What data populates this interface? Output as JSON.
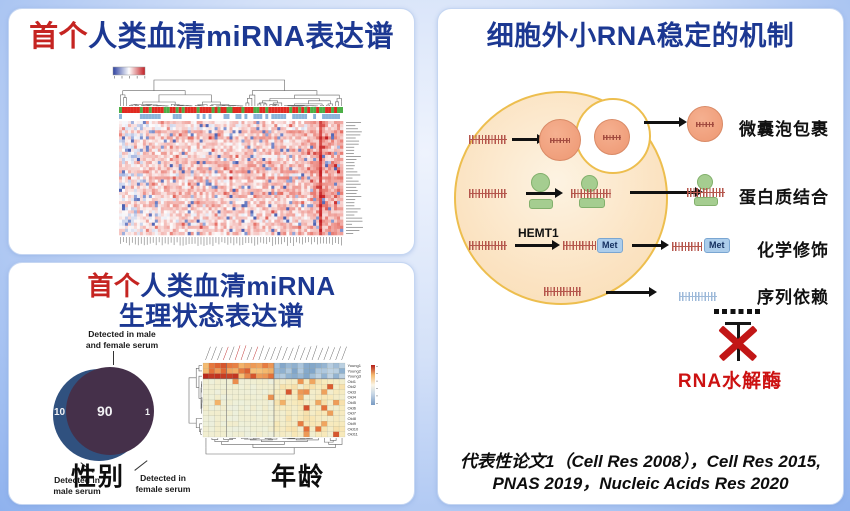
{
  "serum_panel": {
    "title_prefix": "首个",
    "title_rest": "人类血清miRNA表达谱",
    "heatmap": {
      "rows": 37,
      "cols": 75,
      "seed": 13,
      "color_low": "#2d41a0",
      "color_mid": "#ffffff",
      "color_high": "#c31e23",
      "annotation1_colors": [
        "#e02a20",
        "#4caf46"
      ],
      "annotation2_colors": [
        "#8ab4da",
        "#ffffff"
      ]
    }
  },
  "physio_panel": {
    "title_prefix": "首个",
    "title_rest": "人类血清miRNA",
    "title_line2": "生理状态表达谱",
    "venn": {
      "label_top_line1": "Detected in male",
      "label_top_line2": "and female serum",
      "left_value": "10",
      "center_value": "90",
      "right_value": "1",
      "label_left_line1": "Detected in",
      "label_left_line2": "male serum",
      "label_right_line1": "Detected in",
      "label_right_line2": "female serum",
      "caption": "性别",
      "color_left": "#30517f",
      "color_right": "#45304a"
    },
    "age": {
      "caption": "年龄",
      "cols": 24,
      "seed": 21,
      "row_labels": [
        "Young1",
        "Young2",
        "Young3",
        "Old1",
        "Old2",
        "Old3",
        "Old4",
        "Old5",
        "Old6",
        "Old7",
        "Old8",
        "Old9",
        "Old10",
        "Old11"
      ]
    }
  },
  "mechanism_panel": {
    "title": "细胞外小RNA稳定的机制",
    "mechanisms": [
      "微囊泡包裹",
      "蛋白质结合",
      "化学修饰",
      "序列依赖"
    ],
    "enzyme": "HEMT1",
    "met": "Met",
    "rnase": "RNA水解酶",
    "citation_line1": "代表性论文1（Cell Res 2008），Cell Res 2015,",
    "citation_line2": "PNAS 2019，Nucleic Acids Res 2020"
  },
  "chart_data": [
    {
      "type": "heatmap",
      "title": "首个人类血清miRNA表达谱",
      "rows": 37,
      "cols": 75,
      "colormap": "blue-white-red",
      "legend_position": "top-left",
      "notes": "Serum miRNA expression heatmap with top hierarchical-clustering dendrogram, a red/green sample annotation bar and a blue/white annotation bar; body mostly light red with scattered blue cells, stronger red block on right columns and one dark-red column stripe; tiny illegible row/column labels."
    },
    {
      "type": "venn",
      "title": "性别",
      "sets": [
        {
          "label": "Detected in male serum",
          "value": 10
        },
        {
          "label": "Detected in male and female serum",
          "value": 90
        },
        {
          "label": "Detected in female serum",
          "value": 1
        }
      ]
    },
    {
      "type": "heatmap",
      "title": "年龄",
      "row_labels": [
        "Young1",
        "Young2",
        "Young3",
        "Old1",
        "Old2",
        "Old3",
        "Old4",
        "Old5",
        "Old6",
        "Old7",
        "Old8",
        "Old9",
        "Old10",
        "Old11"
      ],
      "cols": 24,
      "colormap": "red-yellow-white-blue",
      "legend_position": "right",
      "notes": "Young rows: warm (orange/red) in the left column cluster and cool (light blue) in the right cluster; Old rows: pale yellow-green with scattered orange cells, more in the right cluster; column labels tiny/illegible, a few tinted red; dendrograms on left and bottom."
    }
  ]
}
